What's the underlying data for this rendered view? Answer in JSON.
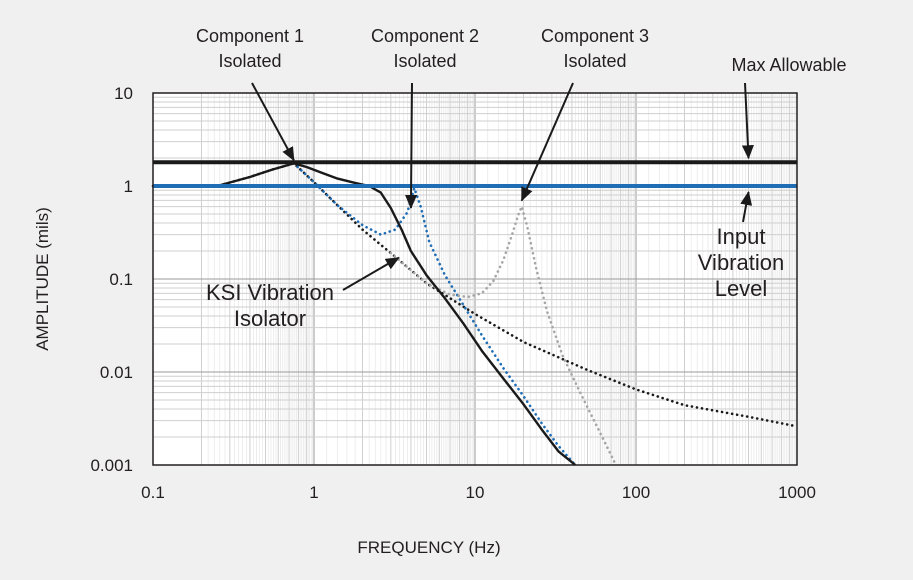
{
  "chart_data": {
    "type": "line",
    "x_scale": "log",
    "y_scale": "log",
    "xlim": [
      0.1,
      1000
    ],
    "ylim": [
      0.001,
      10
    ],
    "xlabel": "FREQUENCY (Hz)",
    "ylabel": "AMPLITUDE (mils)",
    "x_ticks": [
      0.1,
      1,
      10,
      100,
      1000
    ],
    "x_tick_labels": [
      "0.1",
      "1",
      "10",
      "100",
      "1000"
    ],
    "y_ticks": [
      0.001,
      0.01,
      0.1,
      1,
      10
    ],
    "y_tick_labels": [
      "0.001",
      "0.01",
      "0.1",
      "1",
      "10"
    ],
    "grid": true,
    "series": [
      {
        "name": "Max Allowable",
        "style": "solid",
        "color": "#1a1a1a",
        "x": [
          0.1,
          1000
        ],
        "y": [
          1.8,
          1.8
        ]
      },
      {
        "name": "Input Vibration Level",
        "style": "solid",
        "color": "#1f6db5",
        "x": [
          0.1,
          1000
        ],
        "y": [
          1.0,
          1.0
        ]
      },
      {
        "name": "KSI Vibration Isolator",
        "style": "solid",
        "color": "#1a1a1a",
        "x": [
          0.1,
          0.25,
          0.4,
          0.55,
          0.75,
          0.9,
          1.1,
          1.4,
          1.8,
          2.2,
          2.6,
          3.0,
          3.5,
          4.0,
          5.0,
          6.5,
          8.5,
          11,
          15,
          20,
          26,
          33,
          42
        ],
        "y": [
          1.0,
          1.0,
          1.25,
          1.5,
          1.75,
          1.6,
          1.4,
          1.2,
          1.08,
          1.0,
          0.85,
          0.58,
          0.34,
          0.2,
          0.11,
          0.062,
          0.033,
          0.017,
          0.0085,
          0.0045,
          0.0024,
          0.0014,
          0.001
        ]
      },
      {
        "name": "Component 1 Isolated",
        "style": "dotted",
        "color": "#1a1a1a",
        "x": [
          0.1,
          0.25,
          0.4,
          0.55,
          0.75,
          1.0,
          1.4,
          2.0,
          3.0,
          5.0,
          10,
          20,
          50,
          100,
          200,
          500,
          1000
        ],
        "y": [
          1.0,
          1.0,
          1.25,
          1.5,
          1.75,
          1.1,
          0.62,
          0.34,
          0.19,
          0.09,
          0.042,
          0.021,
          0.0105,
          0.0065,
          0.0044,
          0.0033,
          0.0026
        ]
      },
      {
        "name": "Component 2 Isolated",
        "style": "dotted",
        "color": "#1f6db5",
        "x": [
          0.75,
          1.0,
          1.4,
          2.0,
          2.6,
          3.2,
          3.8,
          4.2,
          4.6,
          5.2,
          6.5,
          8.5,
          11,
          15,
          20,
          26,
          33,
          42
        ],
        "y": [
          1.75,
          1.1,
          0.62,
          0.38,
          0.3,
          0.34,
          0.52,
          0.95,
          0.6,
          0.25,
          0.11,
          0.052,
          0.025,
          0.011,
          0.0055,
          0.0028,
          0.0016,
          0.001
        ]
      },
      {
        "name": "Component 3 Isolated",
        "style": "dotted",
        "color": "#a6a6a6",
        "x": [
          3.0,
          5.0,
          7.0,
          9.0,
          11,
          13,
          15,
          17,
          18.5,
          19.5,
          21,
          24,
          28,
          35,
          45,
          60,
          75
        ],
        "y": [
          0.19,
          0.09,
          0.068,
          0.064,
          0.07,
          0.095,
          0.16,
          0.3,
          0.48,
          0.6,
          0.38,
          0.13,
          0.045,
          0.015,
          0.006,
          0.0022,
          0.001
        ]
      }
    ],
    "annotations": [
      {
        "text_lines": [
          "Component 1",
          "Isolated"
        ],
        "x": 0.75,
        "y": 1.75
      },
      {
        "text_lines": [
          "Component 2",
          "Isolated"
        ],
        "x": 4.0,
        "y": 1.0
      },
      {
        "text_lines": [
          "Component 3",
          "Isolated"
        ],
        "x": 19.5,
        "y": 0.6
      },
      {
        "text_lines": [
          "Max Allowable"
        ],
        "x": 500,
        "y": 1.8
      },
      {
        "text_lines": [
          "Input",
          "Vibration",
          "Level"
        ],
        "x": 500,
        "y": 1.0
      },
      {
        "text_lines": [
          "KSI Vibration",
          "Isolator"
        ],
        "x": 4.0,
        "y": 0.17
      }
    ]
  }
}
